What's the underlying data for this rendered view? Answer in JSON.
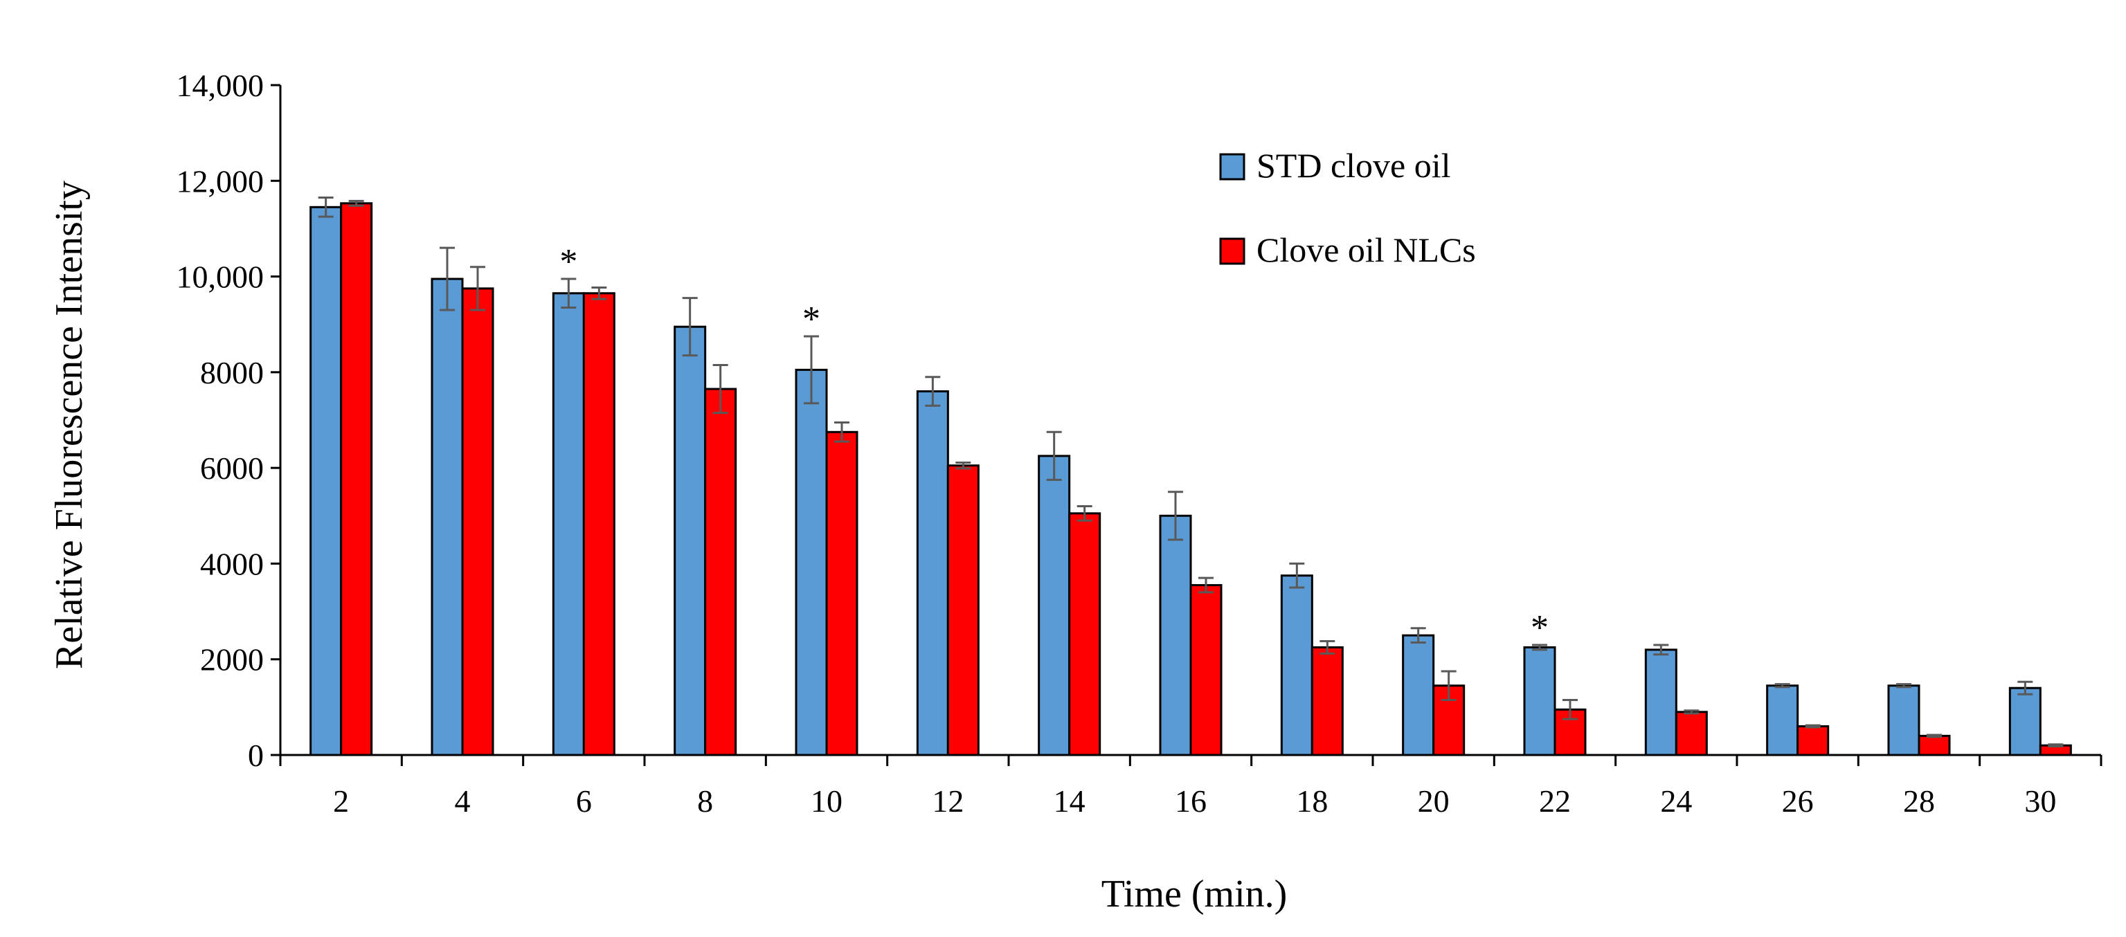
{
  "chart_data": {
    "type": "bar",
    "title": "",
    "xlabel": "Time (min.)",
    "ylabel": "Relative Fluorescence Intensity",
    "ylim": [
      0,
      14000
    ],
    "y_ticks": [
      0,
      2000,
      4000,
      6000,
      8000,
      10000,
      12000,
      14000
    ],
    "y_tick_labels": [
      "0",
      "2000",
      "4000",
      "6000",
      "8000",
      "10,000",
      "12,000",
      "14,000"
    ],
    "categories": [
      "2",
      "4",
      "6",
      "8",
      "10",
      "12",
      "14",
      "16",
      "18",
      "20",
      "22",
      "24",
      "26",
      "28",
      "30"
    ],
    "series": [
      {
        "name": "STD clove oil",
        "color": "#5b9bd5",
        "values": [
          11450,
          9950,
          9650,
          8950,
          8050,
          7600,
          6250,
          5000,
          3750,
          2500,
          2250,
          2200,
          1450,
          1450,
          1400
        ],
        "errors": [
          200,
          650,
          300,
          600,
          700,
          300,
          500,
          500,
          250,
          150,
          50,
          100,
          30,
          30,
          130
        ]
      },
      {
        "name": "Clove oil NLCs",
        "color": "#ff0000",
        "values": [
          11530,
          9750,
          9650,
          7650,
          6750,
          6050,
          5050,
          3550,
          2250,
          1450,
          950,
          900,
          600,
          400,
          200
        ],
        "errors": [
          50,
          450,
          120,
          500,
          200,
          60,
          150,
          150,
          130,
          300,
          200,
          30,
          20,
          20,
          20
        ]
      }
    ],
    "annotations": [
      {
        "category": "6",
        "series": "STD clove oil",
        "text": "*"
      },
      {
        "category": "10",
        "series": "STD clove oil",
        "text": "*"
      },
      {
        "category": "22",
        "series": "STD clove oil",
        "text": "*"
      }
    ],
    "legend_position": "top-right",
    "grid": false
  }
}
